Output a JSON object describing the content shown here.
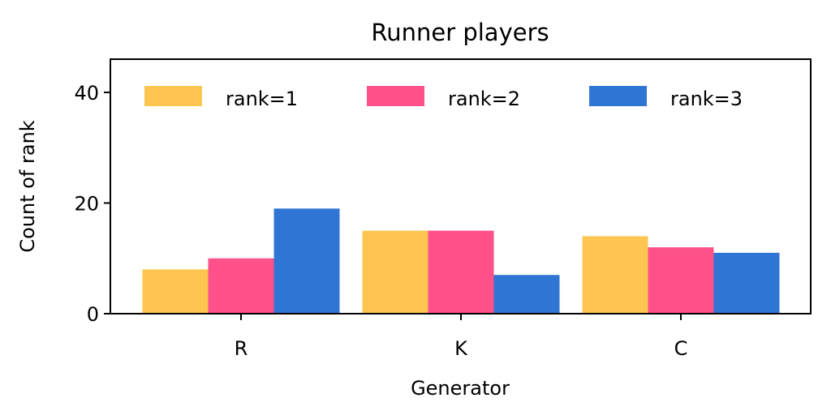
{
  "chart_data": {
    "type": "bar",
    "title": "Runner players",
    "xlabel": "Generator",
    "ylabel": "Count of rank",
    "categories": [
      "R",
      "K",
      "C"
    ],
    "series": [
      {
        "name": "rank=1",
        "color": "#FEC550",
        "values": [
          8,
          15,
          14
        ]
      },
      {
        "name": "rank=2",
        "color": "#FE5189",
        "values": [
          10,
          15,
          12
        ]
      },
      {
        "name": "rank=3",
        "color": "#2E75D4",
        "values": [
          19,
          7,
          11
        ]
      }
    ],
    "ylim": [
      0,
      46
    ],
    "yticks": [
      0,
      20,
      40
    ],
    "grid": false,
    "legend_position": "top"
  }
}
